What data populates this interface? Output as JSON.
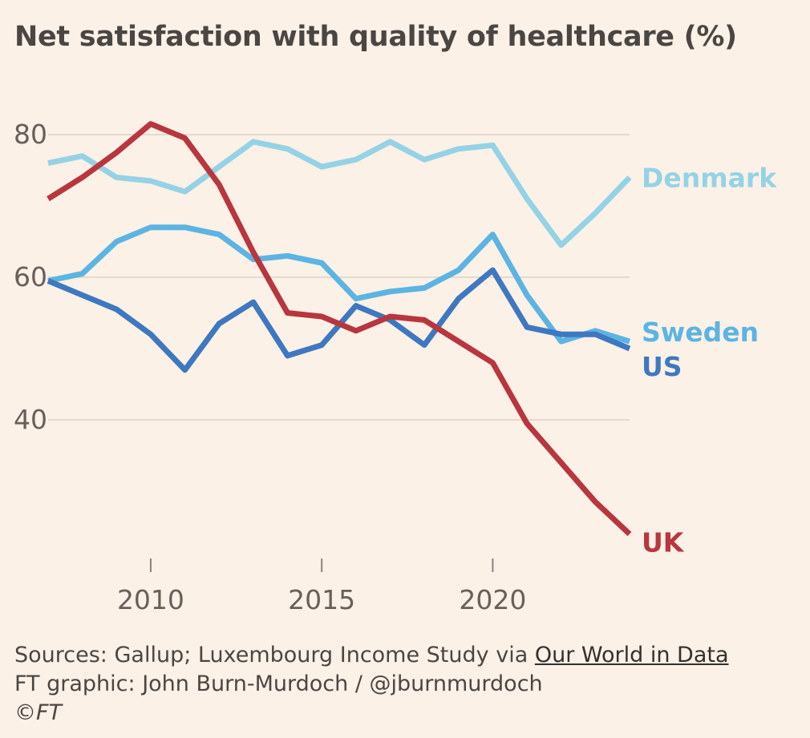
{
  "title": "Net satisfaction with quality of healthcare (%)",
  "footer": {
    "sources_prefix": "Sources: Gallup; Luxembourg Income Study via ",
    "sources_link": "Our World in Data",
    "credit": "FT graphic: John Burn-Murdoch / @jburnmurdoch",
    "copyright_symbol": "©",
    "copyright_brand": "FT"
  },
  "chart_data": {
    "type": "line",
    "title": "Net satisfaction with quality of healthcare (%)",
    "xlabel": "",
    "ylabel": "",
    "xlim": [
      2007,
      2024
    ],
    "ylim": [
      21,
      85
    ],
    "y_ticks": [
      80,
      60,
      40
    ],
    "x_ticks": [
      2010,
      2015,
      2020
    ],
    "grid": true,
    "series": [
      {
        "name": "Denmark",
        "color": "#95d2e6",
        "x": [
          2007,
          2008,
          2009,
          2010,
          2011,
          2012,
          2013,
          2014,
          2015,
          2016,
          2017,
          2018,
          2019,
          2020,
          2021,
          2022,
          2023,
          2024
        ],
        "values": [
          76,
          77,
          74,
          73.5,
          72,
          75.5,
          79,
          78,
          75.5,
          76.5,
          79,
          76.5,
          78,
          78.5,
          71,
          64.5,
          69,
          74
        ]
      },
      {
        "name": "Sweden",
        "color": "#5cb4e2",
        "x": [
          2007,
          2008,
          2009,
          2010,
          2011,
          2012,
          2013,
          2014,
          2015,
          2016,
          2017,
          2018,
          2019,
          2020,
          2021,
          2022,
          2023,
          2024
        ],
        "values": [
          59.5,
          60.5,
          65,
          67,
          67,
          66,
          62.5,
          63,
          62,
          57,
          58,
          58.5,
          61,
          66,
          57.5,
          51,
          52.5,
          51
        ]
      },
      {
        "name": "US",
        "color": "#3e78c0",
        "x": [
          2007,
          2008,
          2009,
          2010,
          2011,
          2012,
          2013,
          2014,
          2015,
          2016,
          2017,
          2018,
          2019,
          2020,
          2021,
          2022,
          2023,
          2024
        ],
        "values": [
          59.5,
          57.5,
          55.5,
          52,
          47,
          53.5,
          56.5,
          49,
          50.5,
          56,
          54,
          50.5,
          57,
          61,
          53,
          52,
          52,
          50
        ]
      },
      {
        "name": "UK",
        "color": "#b8363e",
        "x": [
          2007,
          2008,
          2009,
          2010,
          2011,
          2012,
          2013,
          2014,
          2015,
          2016,
          2017,
          2018,
          2019,
          2020,
          2021,
          2022,
          2023,
          2024
        ],
        "values": [
          71,
          74,
          77.5,
          81.5,
          79.5,
          73,
          63.5,
          55,
          54.5,
          52.5,
          54.5,
          54,
          51,
          48,
          39.5,
          34,
          28.5,
          24
        ]
      }
    ]
  }
}
